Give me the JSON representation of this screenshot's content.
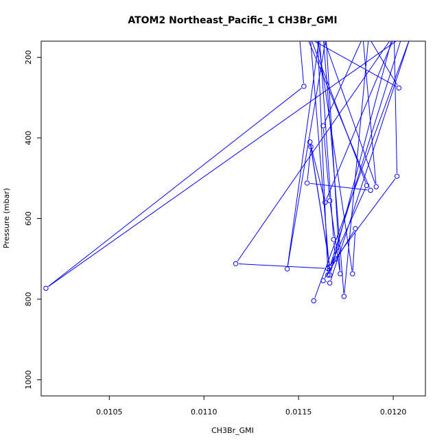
{
  "chart_data": {
    "type": "line",
    "title": "ATOM2 Northeast_Pacific_1 CH3Br_GMI",
    "xlabel": "CH3Br_GMI",
    "ylabel": "Pressure (mbar)",
    "xlim": [
      0.01014,
      0.01217
    ],
    "ylim": [
      1040,
      160
    ],
    "y_reversed": true,
    "x_ticks": [
      0.0105,
      0.011,
      0.0115,
      0.012
    ],
    "x_tick_labels": [
      "0.0105",
      "0.0110",
      "0.0115",
      "0.0120"
    ],
    "y_ticks": [
      200,
      400,
      600,
      800,
      1000
    ],
    "y_tick_labels": [
      "200",
      "400",
      "600",
      "800",
      "1000"
    ],
    "grid": false,
    "line_color": "#0000ff",
    "series": [
      {
        "x": [
          0.011505,
          0.011528,
          0.010165,
          0.012045,
          0.011665,
          0.01156,
          0.01164,
          0.012005,
          0.01202,
          0.011655,
          0.011168,
          0.011995,
          0.011665,
          0.011562,
          0.01186,
          0.011665,
          0.011565,
          0.011545,
          0.01188,
          0.011545,
          0.01203,
          0.01187,
          0.01174,
          0.01163,
          0.01191,
          0.01184,
          0.01163,
          0.011665,
          0.01172,
          0.011645,
          0.01144,
          0.01161,
          0.011685,
          0.011695,
          0.011655,
          0.0116,
          0.011785,
          0.0118,
          0.01163,
          0.011665,
          0.01209,
          0.01158
        ],
        "y": [
          150,
          272,
          773,
          150,
          720,
          410,
          560,
          150,
          495,
          724,
          712,
          150,
          740,
          150,
          518,
          720,
          422,
          512,
          530,
          150,
          276,
          150,
          793,
          150,
          521,
          150,
          370,
          556,
          737,
          150,
          725,
          150,
          652,
          700,
          740,
          150,
          737,
          625,
          754,
          760,
          150,
          804
        ]
      }
    ]
  }
}
